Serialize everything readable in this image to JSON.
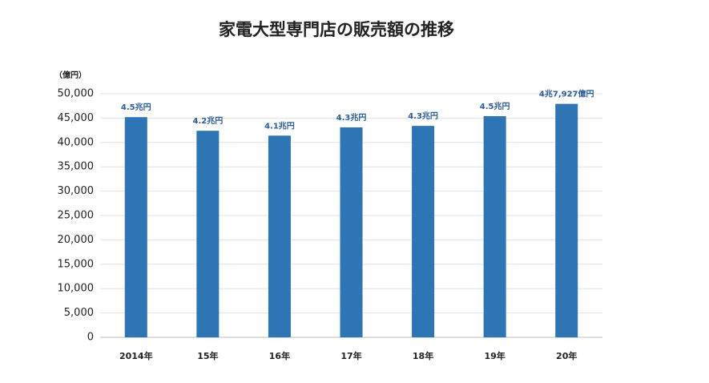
{
  "chart_data": {
    "type": "bar",
    "title": "家電大型専門店の販売額の推移",
    "y_label": "（億円）",
    "categories": [
      "2014年",
      "15年",
      "16年",
      "17年",
      "18年",
      "19年",
      "20年"
    ],
    "values": [
      45200,
      42400,
      41400,
      43100,
      43400,
      45400,
      47927
    ],
    "value_labels": [
      "4.5兆円",
      "4.2兆円",
      "4.1兆円",
      "4.3兆円",
      "4.3兆円",
      "4.5兆円",
      "4兆7,927億円"
    ],
    "color": "#2e75b6",
    "ylim": [
      0,
      50000
    ],
    "yticks": [
      0,
      {
        "value": 5000,
        "label": "5,000"
      },
      {
        "value": 10000,
        "label": "10,000"
      },
      {
        "value": 15000,
        "label": "15,000"
      },
      {
        "value": 20000,
        "label": "20,000"
      },
      {
        "value": 25000,
        "label": "25,000"
      },
      {
        "value": 30000,
        "label": "30,000"
      },
      {
        "value": 35000,
        "label": "35,000"
      },
      {
        "value": 40000,
        "label": "40,000"
      },
      {
        "value": 45000,
        "label": "45,000"
      },
      {
        "value": 50000,
        "label": "50,000"
      }
    ],
    "grid": true
  }
}
